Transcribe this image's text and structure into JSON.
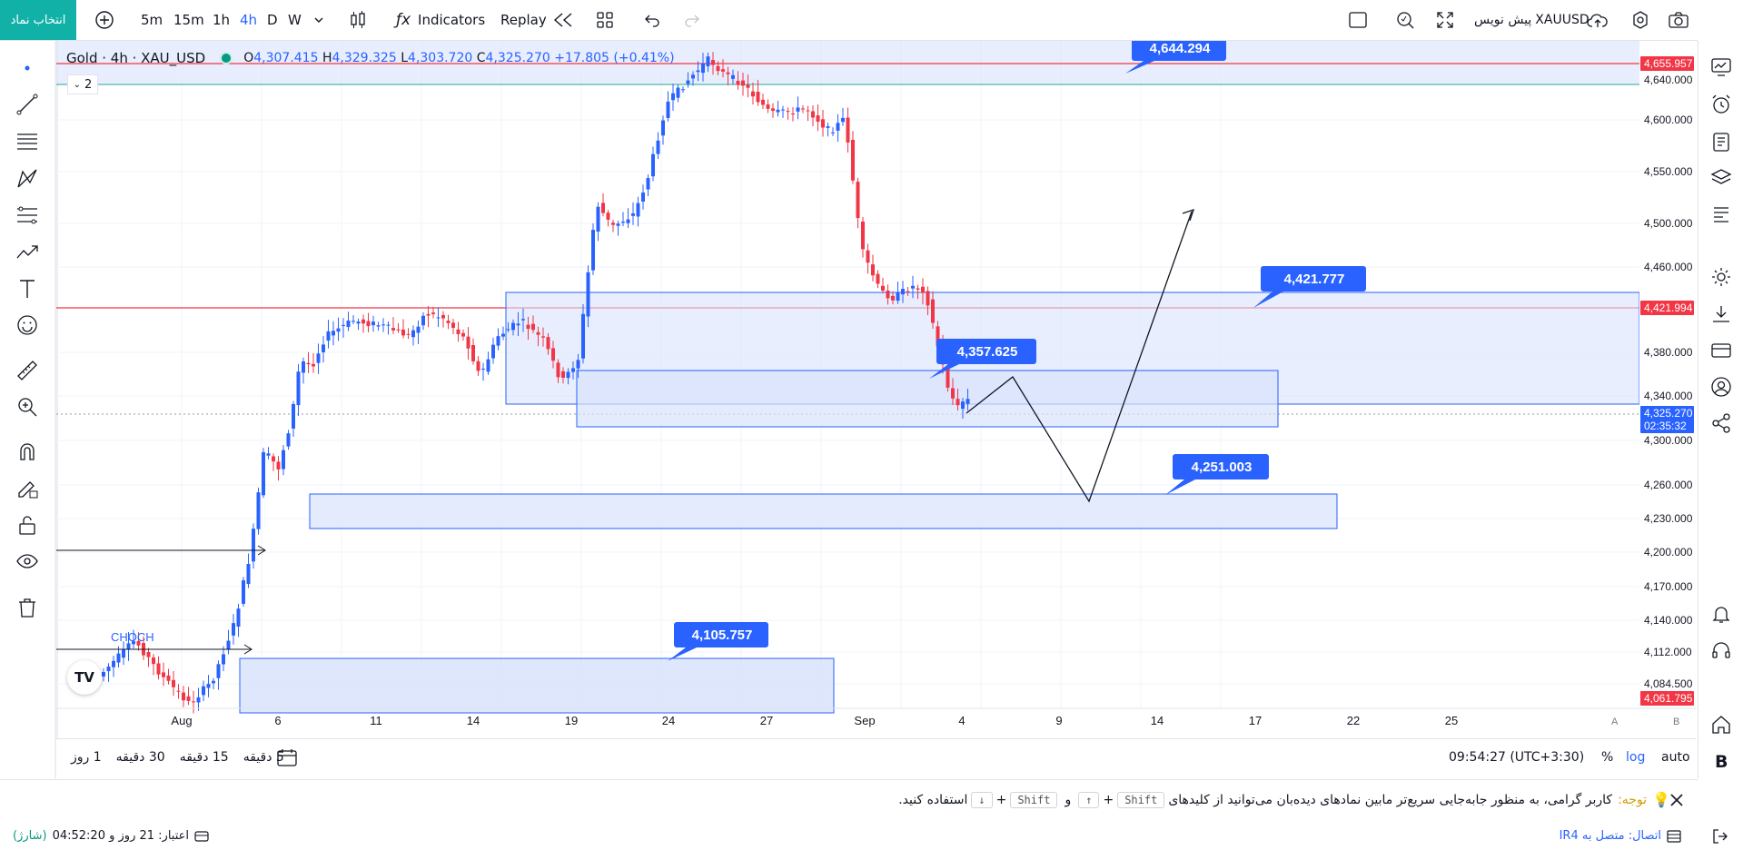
{
  "topbar": {
    "pick_symbol": "انتخاب نماد",
    "timeframes": [
      "5m",
      "15m",
      "1h",
      "4h",
      "D",
      "W"
    ],
    "active_timeframe": "4h",
    "indicators": "Indicators",
    "replay": "Replay",
    "symbol": "XAUUSD",
    "symbol_note": "پیش نویس"
  },
  "legend": {
    "title": "Gold · 4h · XAU_USD",
    "o_label": "O",
    "o": "4,307.415",
    "h_label": "H",
    "h": "4,329.325",
    "l_label": "L",
    "l": "4,303.720",
    "c_label": "C",
    "c": "4,325.270",
    "change": "+17.805 (+0.41%)",
    "collapse_count": "2"
  },
  "annotations": {
    "choch": "CHOCH",
    "callouts": [
      "4,644.294",
      "4,421.777",
      "4,357.625",
      "4,251.003",
      "4,105.757"
    ]
  },
  "price_axis": {
    "ticks": [
      "4,640.000",
      "4,600.000",
      "4,550.000",
      "4,500.000",
      "4,460.000",
      "4,380.000",
      "4,340.000",
      "4,300.000",
      "4,260.000",
      "4,230.000",
      "4,200.000",
      "4,170.000",
      "4,140.000",
      "4,112.000",
      "4,084.500"
    ],
    "tags": {
      "top": "4,655.957",
      "mid": "4,421.994",
      "current": "4,325.270",
      "countdown": "02:35:32",
      "bottom": "4,061.795"
    }
  },
  "time_axis": {
    "labels": [
      "Aug",
      "6",
      "11",
      "14",
      "19",
      "24",
      "27",
      "Sep",
      "4",
      "9",
      "14",
      "17",
      "22",
      "25"
    ],
    "corner_a": "A",
    "corner_b": "B"
  },
  "timebar": {
    "ranges": [
      "5 دقیقه",
      "15 دقیقه",
      "30 دقیقه",
      "1 روز"
    ],
    "clock": "09:54:27 (UTC+3:30)",
    "percent": "%",
    "log": "log",
    "auto": "auto"
  },
  "notice": {
    "label": "توجه:",
    "text_1": "کاربر گرامی، به منظور جابه‌جایی سریع‌تر مابین نمادهای دیده‌بان می‌توانید از کلیدهای",
    "key_shift": "Shift",
    "plus": "+",
    "key_up": "↑",
    "and": "و",
    "key_down": "↓",
    "text_2": "استفاده کنید."
  },
  "status": {
    "connection": "اتصال: متصل به IR4",
    "credit": "اعتبار: 21 روز و 04:52:20",
    "recharge": "(شارژ)"
  },
  "colors": {
    "up": "#2962ff",
    "down": "#f23645",
    "zone_fill": "#d8e3fc",
    "zone_border": "#2962ff",
    "accent": "#12b1a8",
    "callout": "#2962ff"
  }
}
